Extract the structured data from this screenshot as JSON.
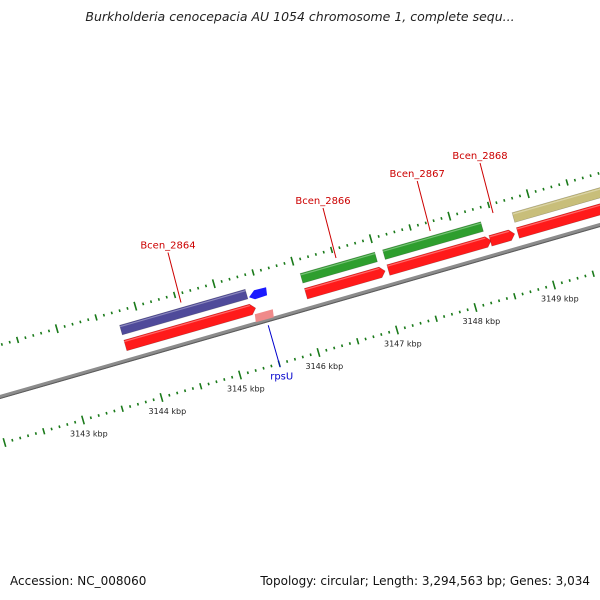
{
  "header": {
    "title": "Burkholderia cenocepacia AU 1054 chromosome 1, complete sequ..."
  },
  "footer": {
    "accession": "Accession: NC_008060",
    "summary": "Topology: circular; Length: 3,294,563 bp; Genes: 3,034"
  },
  "colors": {
    "backbone": "#8c8c8c",
    "forward_gene": "#2e9e2e",
    "purple_gene": "#4f4a9a",
    "olive_gene": "#c8be7a",
    "cds": "#ff1a1a",
    "rna_blue": "#1a1aff",
    "rna_pink": "#f08a8a",
    "tick_track": "#1a7a1a",
    "label_red": "#cc0000",
    "label_blue": "#0000cc"
  },
  "scale": {
    "unit": "kbp",
    "ticks": [
      {
        "pos": 3143,
        "label": "3143 kbp"
      },
      {
        "pos": 3144,
        "label": "3144 kbp"
      },
      {
        "pos": 3145,
        "label": "3145 kbp"
      },
      {
        "pos": 3146,
        "label": "3146 kbp"
      },
      {
        "pos": 3147,
        "label": "3147 kbp"
      },
      {
        "pos": 3148,
        "label": "3148 kbp"
      },
      {
        "pos": 3149,
        "label": "3149 kbp"
      }
    ]
  },
  "features": [
    {
      "id": "Bcen_2864",
      "label": "Bcen_2864",
      "label_color": "label_red",
      "gene_color": "purple_gene",
      "start": 3143.75,
      "end": 3145.35,
      "strand": "+"
    },
    {
      "id": "Bcen_2866",
      "label": "Bcen_2866",
      "label_color": "label_red",
      "gene_color": "forward_gene",
      "start": 3146.05,
      "end": 3147.0,
      "strand": "+"
    },
    {
      "id": "Bcen_2867",
      "label": "Bcen_2867",
      "label_color": "label_red",
      "gene_color": "forward_gene",
      "start": 3147.1,
      "end": 3148.35,
      "strand": "+"
    },
    {
      "id": "Bcen_2868",
      "label": "Bcen_2868",
      "label_color": "label_red",
      "gene_color": null,
      "start": 3148.4,
      "end": 3148.65,
      "strand": "+"
    },
    {
      "id": "next_gene",
      "label": "",
      "label_color": null,
      "gene_color": "olive_gene",
      "start": 3148.75,
      "end": 3149.9,
      "strand": "+"
    },
    {
      "id": "rpsU",
      "label": "rpsU",
      "label_color": "label_blue",
      "gene_color": null,
      "start": 3145.45,
      "end": 3145.6,
      "strand": "-",
      "rna": true
    }
  ]
}
